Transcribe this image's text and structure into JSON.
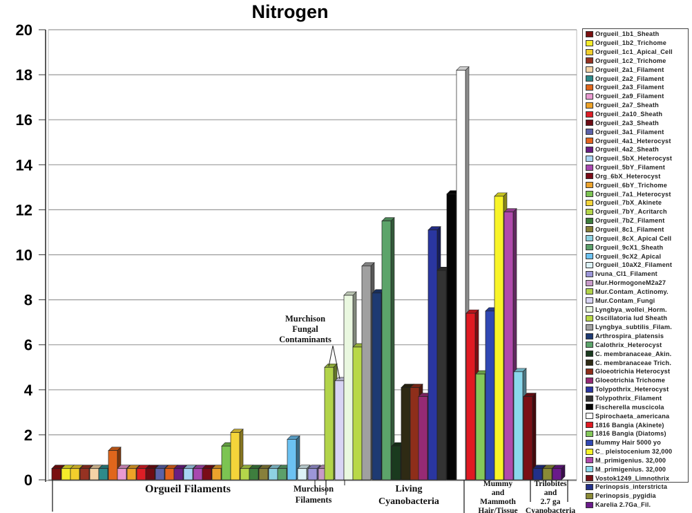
{
  "chart_data": {
    "type": "bar",
    "title": "Nitrogen",
    "xlabel": "",
    "ylabel": "",
    "ylim": [
      0,
      20
    ],
    "yticks": [
      0,
      2,
      4,
      6,
      8,
      10,
      12,
      14,
      16,
      18,
      20
    ],
    "grid": true,
    "legend_position": "right",
    "style": "3d-clustered-column",
    "groups": [
      {
        "label": "Orgueil Filaments",
        "start": 0,
        "end": 23
      },
      {
        "label": "Murchison Filaments",
        "start": 24,
        "end": 26
      },
      {
        "label": "Living Cyanobacteria",
        "start": 27,
        "end": 41
      },
      {
        "label": "Mummy and Mammoth Hair/Tissue",
        "start": 42,
        "end": 48
      },
      {
        "label": "Trilobites and 2.7 ga Cyanobacteria",
        "start": 49,
        "end": 51
      }
    ],
    "annotations": [
      {
        "text": "Murchison Fungal Contaminants",
        "points_to": [
          "Mur.Contam_Actinomy.",
          "Mur.Contam_Fungi"
        ]
      }
    ],
    "series": [
      {
        "name": "Orgueil_1b1_Sheath",
        "value": 0.5,
        "color": "#7a1010"
      },
      {
        "name": "Orgueil_1b2_Trichome",
        "value": 0.5,
        "color": "#f5ec2a"
      },
      {
        "name": "Orgueil_1c1_Apical_Cell",
        "value": 0.5,
        "color": "#f2cf2c"
      },
      {
        "name": "Orgueil_1c2_Trichome",
        "value": 0.5,
        "color": "#963222"
      },
      {
        "name": "Orgueil_2a1_Filament",
        "value": 0.5,
        "color": "#f3d3a6"
      },
      {
        "name": "Orgueil_2a2_Filament",
        "value": 0.5,
        "color": "#2e8a8a"
      },
      {
        "name": "Orgueil_2a3_Filament",
        "value": 1.3,
        "color": "#e0661c"
      },
      {
        "name": "Orgueil_2a9_Filament",
        "value": 0.5,
        "color": "#e89ad0"
      },
      {
        "name": "Orgueil_2a7_Sheath",
        "value": 0.5,
        "color": "#eda228"
      },
      {
        "name": "Orgueil_2a10_Sheath",
        "value": 0.5,
        "color": "#dd1e26"
      },
      {
        "name": "Orgueil_2a3_Sheath",
        "value": 0.5,
        "color": "#6e0c14"
      },
      {
        "name": "Orgueil_3a1_Filament",
        "value": 0.5,
        "color": "#5c62a8"
      },
      {
        "name": "Orgueil_4a1_Heterocyst",
        "value": 0.5,
        "color": "#e4641e"
      },
      {
        "name": "Orgueil_4a2_Sheath",
        "value": 0.5,
        "color": "#6a1e82"
      },
      {
        "name": "Orgueil_5bX_Heterocyst",
        "value": 0.5,
        "color": "#a8d4f4"
      },
      {
        "name": "Orgueil_5bY_Filament",
        "value": 0.5,
        "color": "#a848b0"
      },
      {
        "name": "Org_6bX_Heterocyst",
        "value": 0.5,
        "color": "#7a0c18"
      },
      {
        "name": "Orgueil_6bY_Trichome",
        "value": 0.5,
        "color": "#eca22c"
      },
      {
        "name": "Orgueil_7a1_Heterocyst",
        "value": 1.5,
        "color": "#7cc452"
      },
      {
        "name": "Orgueil_7bX_Akinete",
        "value": 2.1,
        "color": "#f4d43a"
      },
      {
        "name": "Orgueil_7bY_Acritarch",
        "value": 0.5,
        "color": "#b4d64a"
      },
      {
        "name": "Orgueil_7bZ_Filament",
        "value": 0.5,
        "color": "#3e7e3e"
      },
      {
        "name": "Orgueil_8c1_Filament",
        "value": 0.5,
        "color": "#88803a"
      },
      {
        "name": "Orgueil_8cX_Apical Cell",
        "value": 0.5,
        "color": "#8ed2e2"
      },
      {
        "name": "Orgueil_9cX1_Sheath",
        "value": 0.5,
        "color": "#5ca06a"
      },
      {
        "name": "Orgueil_9cX2_Apical",
        "value": 1.8,
        "color": "#6cc2f2"
      },
      {
        "name": "Orgueil_10aX2_Filament",
        "value": 0.5,
        "color": "#dcf2f6"
      },
      {
        "name": "Ivuna_CI1_Filament",
        "value": 0.5,
        "color": "#9c96d8"
      },
      {
        "name": "Mur.HormogoneM2a27",
        "value": 0.5,
        "color": "#c89ac8"
      },
      {
        "name": "Mur.Contam_Actinomy.",
        "value": 5.0,
        "color": "#b2d44a"
      },
      {
        "name": "Mur.Contam_Fungi",
        "value": 4.4,
        "color": "#d8d4f4"
      },
      {
        "name": "Lyngbya_wollei_Horm.",
        "value": 8.2,
        "color": "#eaf8e0"
      },
      {
        "name": "Oscillatoria lud Sheath",
        "value": 5.9,
        "color": "#b8d846"
      },
      {
        "name": "Lyngbya_subtilis_Filam.",
        "value": 9.5,
        "color": "#a0a0a0"
      },
      {
        "name": "Arthrospira_platensis",
        "value": 8.3,
        "color": "#1e3a72"
      },
      {
        "name": "Calothrix_Heterocyst",
        "value": 11.5,
        "color": "#5ca46a"
      },
      {
        "name": "C. membranaceae_Akin.",
        "value": 1.5,
        "color": "#1a3a1e"
      },
      {
        "name": "C. membranaceae Trich.",
        "value": 4.1,
        "color": "#2e2a14"
      },
      {
        "name": "Gloeotrichia Heterocyst",
        "value": 4.1,
        "color": "#8e2e1a"
      },
      {
        "name": "Gloeotrichia Trichome",
        "value": 3.7,
        "color": "#962a74"
      },
      {
        "name": "Tolypothrix_Heterocyst",
        "value": 11.1,
        "color": "#2a36a0"
      },
      {
        "name": "Tolypothrix_Filament",
        "value": 9.3,
        "color": "#333333"
      },
      {
        "name": "Fischerella muscicola",
        "value": 12.7,
        "color": "#050505"
      },
      {
        "name": "Spirochaeta_americana",
        "value": 18.2,
        "color": "#ffffff"
      },
      {
        "name": "1816 Bangia (Akinete)",
        "value": 7.4,
        "color": "#e01a22"
      },
      {
        "name": "1816 Bangia (Diatoms)",
        "value": 4.7,
        "color": "#84c85a"
      },
      {
        "name": "Mummy Hair 5000 yo",
        "value": 7.5,
        "color": "#3048b4"
      },
      {
        "name": "C_ pleistocenium 32,000",
        "value": 12.6,
        "color": "#f8f428"
      },
      {
        "name": "M_primigenius. 32,000",
        "value": 11.9,
        "color": "#b04aac"
      },
      {
        "name": "M_primigenius. 32,000",
        "value": 4.8,
        "color": "#8ad8ec"
      },
      {
        "name": "Vostok1249_Limnothrix",
        "value": 3.7,
        "color": "#7a1016"
      },
      {
        "name": "Perinopsis_interstricta",
        "value": 0.5,
        "color": "#22308a"
      },
      {
        "name": "Perinopsis_pygidia",
        "value": 0.5,
        "color": "#8a8a36"
      },
      {
        "name": "Karelia 2.7Ga_Fil.",
        "value": 0.5,
        "color": "#6a1a8a"
      }
    ]
  },
  "labels": {
    "title": "Nitrogen",
    "annotation": [
      "Murchison",
      "Fungal",
      "Contaminants"
    ],
    "groups": [
      [
        "Orgueil Filaments"
      ],
      [
        "Murchison",
        "Filaments"
      ],
      [
        "Living",
        "Cyanobacteria"
      ],
      [
        "Mummy",
        "and",
        "Mammoth",
        "Hair/Tissue"
      ],
      [
        "Trilobites",
        "and",
        "2.7 ga",
        "Cyanobacteria"
      ]
    ]
  }
}
